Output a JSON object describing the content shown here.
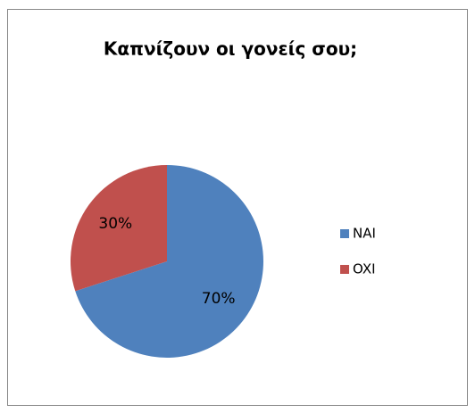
{
  "chart_data": {
    "type": "pie",
    "title": "Καπνίζουν οι γονείς σου;",
    "categories": [
      "NAI",
      "OXI"
    ],
    "values": [
      70,
      30
    ],
    "value_labels": [
      "70%",
      "30%"
    ],
    "colors": [
      "#4f81bd",
      "#c0504d"
    ],
    "legend": "right"
  }
}
